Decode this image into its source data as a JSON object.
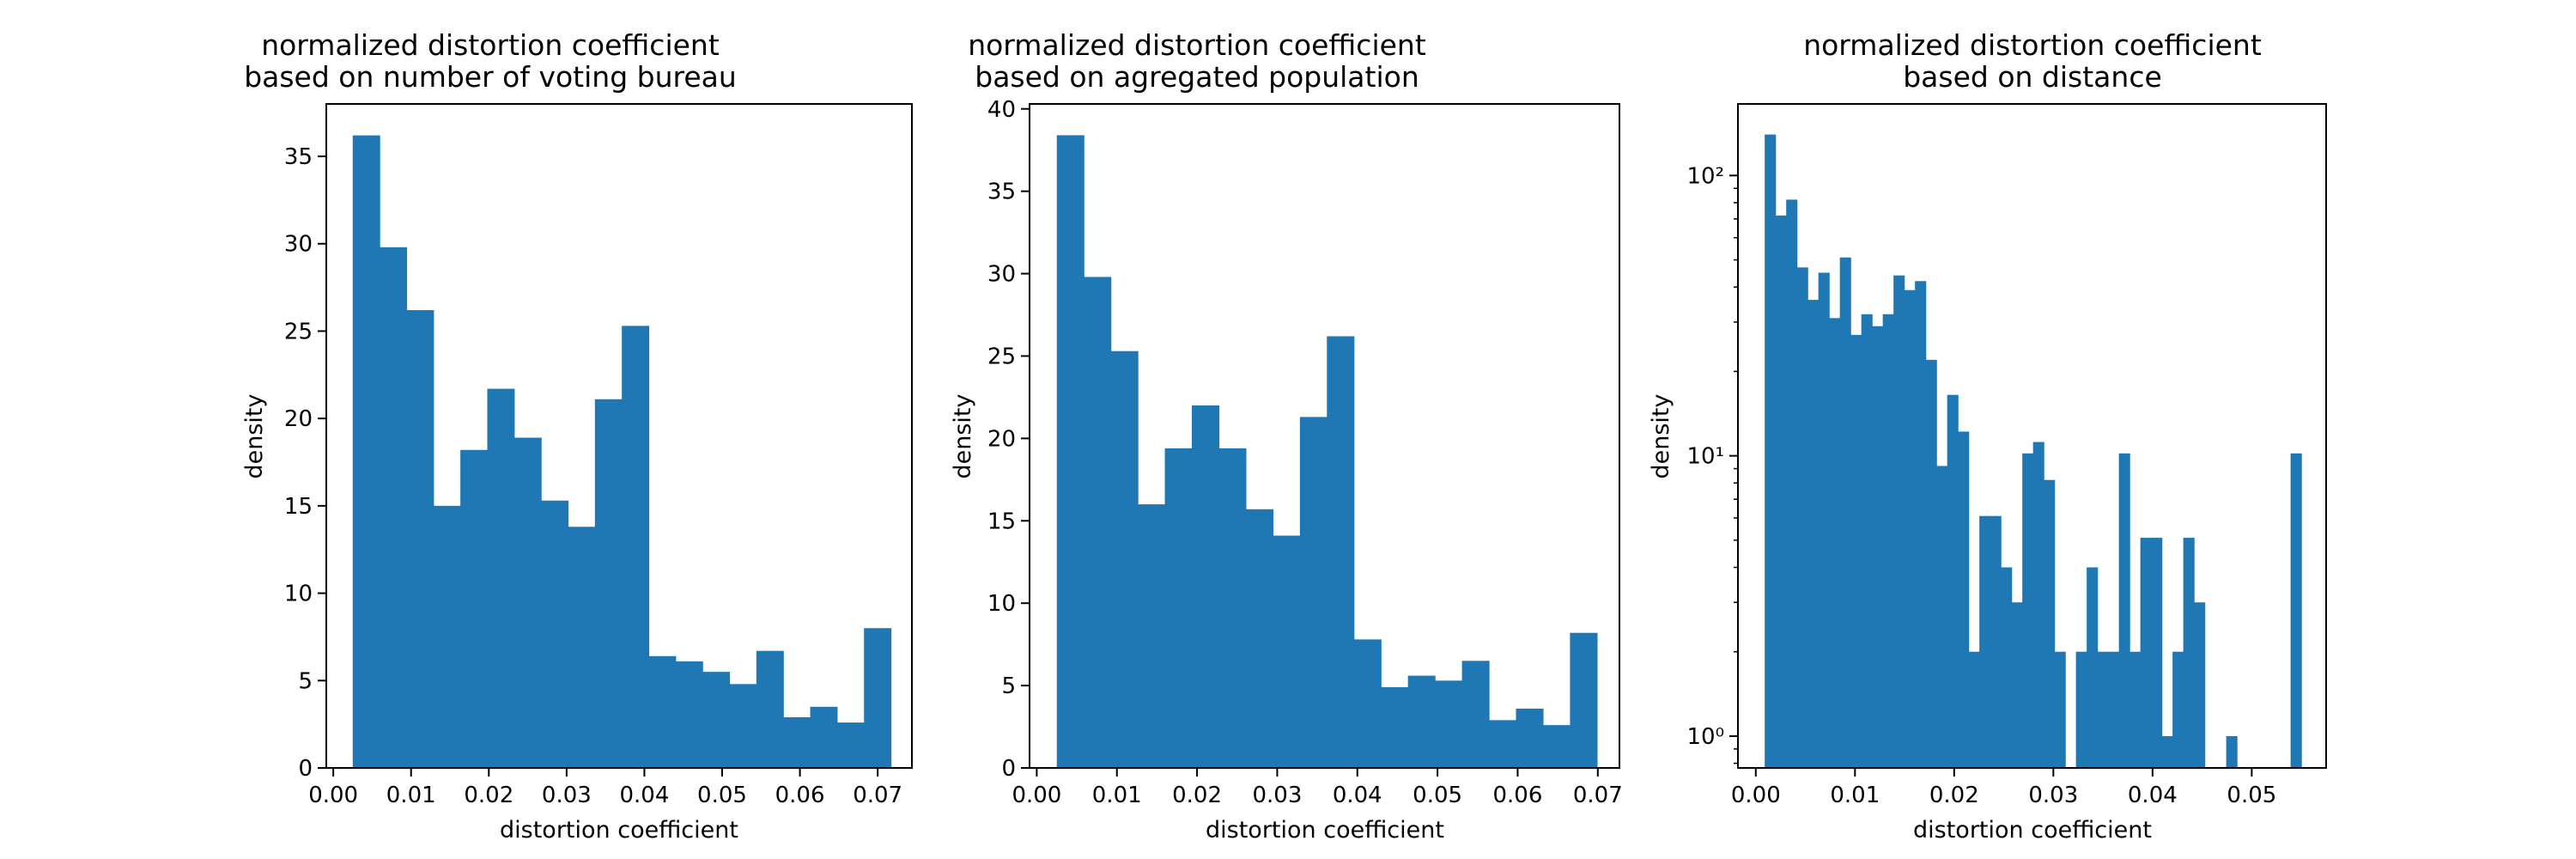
{
  "chart_data": [
    {
      "type": "bar",
      "title_lines": [
        "normalized distortion coefficient",
        "based on number of voting bureau"
      ],
      "xlabel": "distortion coefficient",
      "ylabel": "density",
      "xlim": [
        -0.0009,
        0.0744
      ],
      "ylim": [
        0,
        38
      ],
      "yscale": "linear",
      "xticks": [
        0.0,
        0.01,
        0.02,
        0.03,
        0.04,
        0.05,
        0.06,
        0.07
      ],
      "xtick_labels": [
        "0.00",
        "0.01",
        "0.02",
        "0.03",
        "0.04",
        "0.05",
        "0.06",
        "0.07"
      ],
      "yticks": [
        0,
        5,
        10,
        15,
        20,
        25,
        30,
        35
      ],
      "ytick_labels": [
        "0",
        "5",
        "10",
        "15",
        "20",
        "25",
        "30",
        "35"
      ],
      "bin_start": 0.0025,
      "bin_width": 0.00346,
      "values": [
        36.2,
        29.8,
        26.2,
        15.0,
        18.2,
        21.7,
        18.9,
        15.3,
        13.8,
        21.1,
        25.3,
        6.4,
        6.1,
        5.5,
        4.8,
        6.7,
        2.9,
        3.5,
        2.6,
        8.0
      ],
      "grid": false,
      "bar_color": "#1f77b4"
    },
    {
      "type": "bar",
      "title_lines": [
        "normalized distortion coefficient",
        "based on agregated population"
      ],
      "xlabel": "distortion coefficient",
      "ylabel": "density",
      "xlim": [
        -0.0009,
        0.0727
      ],
      "ylim": [
        0,
        40.3
      ],
      "yscale": "linear",
      "xticks": [
        0.0,
        0.01,
        0.02,
        0.03,
        0.04,
        0.05,
        0.06,
        0.07
      ],
      "xtick_labels": [
        "0.00",
        "0.01",
        "0.02",
        "0.03",
        "0.04",
        "0.05",
        "0.06",
        "0.07"
      ],
      "yticks": [
        0,
        5,
        10,
        15,
        20,
        25,
        30,
        35,
        40
      ],
      "ytick_labels": [
        "0",
        "5",
        "10",
        "15",
        "20",
        "25",
        "30",
        "35",
        "40"
      ],
      "bin_start": 0.0025,
      "bin_width": 0.00337,
      "values": [
        38.4,
        29.8,
        25.3,
        16.0,
        19.4,
        22.0,
        19.4,
        15.7,
        14.1,
        21.3,
        26.2,
        7.8,
        4.9,
        5.6,
        5.3,
        6.5,
        2.9,
        3.6,
        2.6,
        8.2
      ],
      "grid": false,
      "bar_color": "#1f77b4"
    },
    {
      "type": "bar",
      "title_lines": [
        "normalized distortion coefficient",
        "based on distance"
      ],
      "xlabel": "distortion coefficient",
      "ylabel": "density",
      "xlim": [
        -0.0018,
        0.0575
      ],
      "ylim": [
        0.77,
        180
      ],
      "yscale": "log",
      "xticks": [
        0.0,
        0.01,
        0.02,
        0.03,
        0.04,
        0.05
      ],
      "xtick_labels": [
        "0.00",
        "0.01",
        "0.02",
        "0.03",
        "0.04",
        "0.05"
      ],
      "yticks": [
        1,
        10,
        100
      ],
      "ytick_labels": [
        "10⁰",
        "10¹",
        "10²"
      ],
      "bin_start": 0.0009,
      "bin_width": 0.001082,
      "values": [
        140,
        72,
        82,
        47,
        36,
        45,
        31,
        51,
        27,
        32,
        29,
        32,
        44,
        39,
        42,
        22,
        9.2,
        16.5,
        12.2,
        2.0,
        6.1,
        6.1,
        4.0,
        3.0,
        10.2,
        11.2,
        8.2,
        2.0,
        0,
        2.0,
        4.0,
        2.0,
        2.0,
        10.2,
        2.0,
        5.1,
        5.1,
        1.0,
        2.0,
        5.1,
        3.0,
        0,
        0,
        1.0,
        0,
        0,
        0,
        0,
        0,
        10.2
      ],
      "grid": false,
      "bar_color": "#1f77b4"
    }
  ]
}
